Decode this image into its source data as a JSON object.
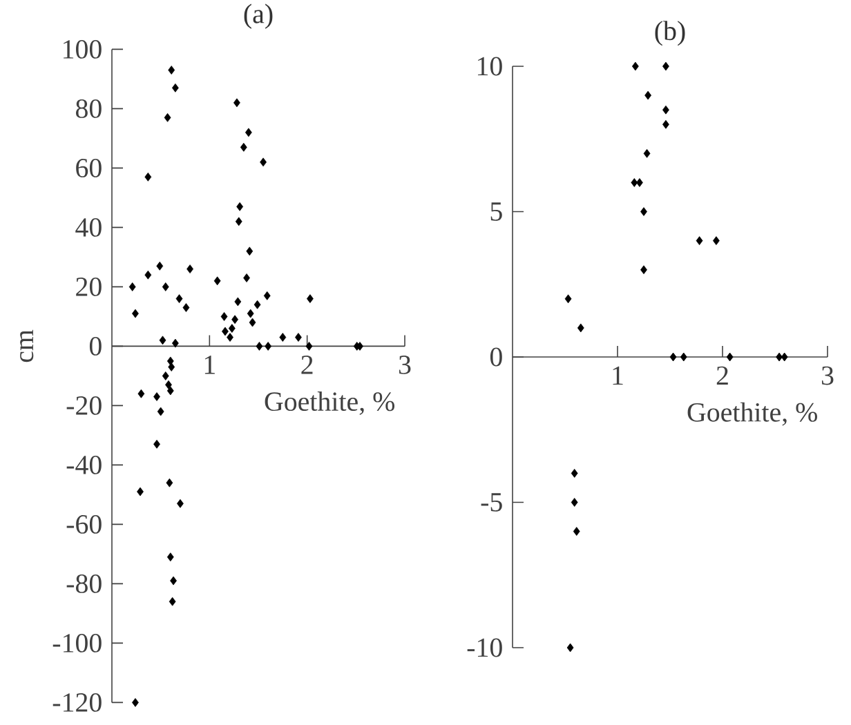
{
  "chart_data": [
    {
      "type": "scatter",
      "title": "(a)",
      "xlabel": "Goethite, %",
      "ylabel": "cm",
      "xlim": [
        0,
        3
      ],
      "ylim": [
        -120,
        100
      ],
      "xticks": [
        1,
        2,
        3
      ],
      "yticks": [
        -120,
        -100,
        -80,
        -60,
        -40,
        -20,
        0,
        20,
        40,
        60,
        80,
        100
      ],
      "marker": "diamond",
      "series": [
        {
          "color": "#000000",
          "x": [
            0.21,
            0.24,
            0.37,
            0.37,
            0.49,
            0.55,
            0.57,
            0.61,
            0.65,
            0.69,
            0.76,
            0.8,
            0.52,
            0.65,
            1.08,
            1.15,
            1.16,
            1.21,
            1.23,
            1.26,
            1.29,
            1.28,
            1.31,
            1.3,
            1.35,
            1.4,
            1.41,
            1.38,
            1.42,
            1.44,
            1.49,
            1.59,
            1.55,
            1.51,
            1.6,
            1.75,
            1.91,
            2.03,
            2.02,
            2.51,
            2.54,
            0.6,
            0.61,
            0.55,
            0.58,
            0.6,
            0.3,
            0.46,
            0.5,
            0.46,
            0.59,
            0.29,
            0.7,
            0.6,
            0.63,
            0.62,
            0.24
          ],
          "values": [
            20,
            11,
            57,
            24,
            27,
            20,
            77,
            93,
            87,
            16,
            13,
            26,
            2,
            1,
            22,
            10,
            5,
            3,
            6,
            9,
            15,
            82,
            47,
            42,
            67,
            72,
            32,
            23,
            11,
            8,
            14,
            17,
            62,
            0,
            0,
            3,
            3,
            16,
            0,
            0,
            0,
            -5,
            -7,
            -10,
            -13,
            -15,
            -16,
            -17,
            -22,
            -33,
            -46,
            -49,
            -53,
            -71,
            -79,
            -86,
            -120
          ]
        }
      ]
    },
    {
      "type": "scatter",
      "title": "(b)",
      "xlabel": "Goethite, %",
      "xlim": [
        0,
        3
      ],
      "ylim": [
        -10,
        10
      ],
      "xticks": [
        1,
        2,
        3
      ],
      "yticks": [
        -10,
        -5,
        0,
        5,
        10
      ],
      "marker": "diamond",
      "series": [
        {
          "color": "#000000",
          "x": [
            1.17,
            1.46,
            1.29,
            1.46,
            1.46,
            1.28,
            1.16,
            1.21,
            1.25,
            1.25,
            1.78,
            1.94,
            0.53,
            0.65,
            1.53,
            1.63,
            2.07,
            2.54,
            2.59,
            0.59,
            0.59,
            0.61,
            0.55
          ],
          "values": [
            10,
            10,
            9,
            8.5,
            8,
            7,
            6,
            6,
            5,
            3,
            4,
            4,
            2,
            1,
            0,
            0,
            0,
            0,
            0,
            -4,
            -5,
            -6,
            -10
          ]
        }
      ]
    }
  ]
}
